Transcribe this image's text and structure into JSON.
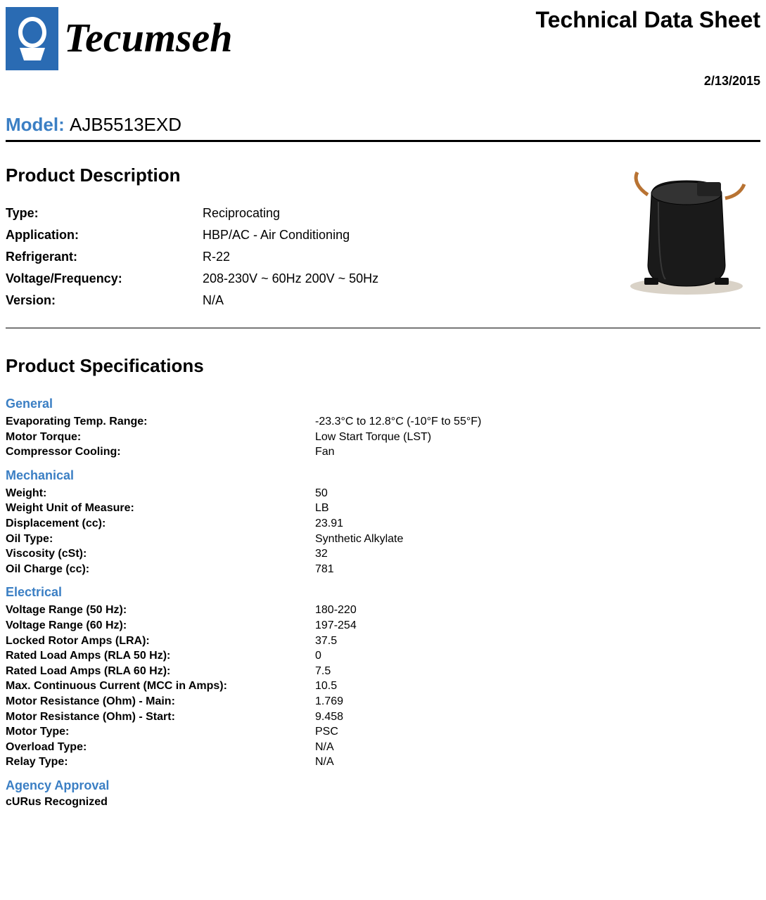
{
  "header": {
    "brand": "Tecumseh",
    "sheet_title": "Technical Data Sheet",
    "date": "2/13/2015",
    "logo_bg_color": "#2a6bb3"
  },
  "model": {
    "label": "Model:",
    "value": "AJB5513EXD"
  },
  "description": {
    "heading": "Product Description",
    "rows": [
      {
        "label": "Type:",
        "value": "Reciprocating"
      },
      {
        "label": "Application:",
        "value": "HBP/AC - Air Conditioning"
      },
      {
        "label": "Refrigerant:",
        "value": "R-22"
      },
      {
        "label": "Voltage/Frequency:",
        "value": "208-230V ~ 60Hz 200V ~ 50Hz"
      },
      {
        "label": "Version:",
        "value": "N/A"
      }
    ]
  },
  "specs": {
    "heading": "Product Specifications",
    "sections": [
      {
        "title": "General",
        "rows": [
          {
            "label": "Evaporating Temp. Range:",
            "value": "-23.3°C to 12.8°C (-10°F to 55°F)"
          },
          {
            "label": "Motor Torque:",
            "value": "Low Start Torque (LST)"
          },
          {
            "label": "Compressor Cooling:",
            "value": "Fan"
          }
        ]
      },
      {
        "title": "Mechanical",
        "rows": [
          {
            "label": "Weight:",
            "value": "50"
          },
          {
            "label": "Weight Unit of Measure:",
            "value": "LB"
          },
          {
            "label": "Displacement (cc):",
            "value": "23.91"
          },
          {
            "label": "Oil Type:",
            "value": "Synthetic Alkylate"
          },
          {
            "label": "Viscosity (cSt):",
            "value": "32"
          },
          {
            "label": "Oil Charge (cc):",
            "value": "781"
          }
        ]
      },
      {
        "title": "Electrical",
        "rows": [
          {
            "label": "Voltage Range (50 Hz):",
            "value": "180-220"
          },
          {
            "label": "Voltage Range (60 Hz):",
            "value": "197-254"
          },
          {
            "label": "Locked Rotor Amps (LRA):",
            "value": "37.5"
          },
          {
            "label": "Rated Load Amps (RLA 50 Hz):",
            "value": "0"
          },
          {
            "label": "Rated Load Amps (RLA 60 Hz):",
            "value": "7.5"
          },
          {
            "label": "Max. Continuous Current (MCC in Amps):",
            "value": "10.5"
          },
          {
            "label": "Motor Resistance (Ohm) - Main:",
            "value": "1.769"
          },
          {
            "label": "Motor Resistance (Ohm) - Start:",
            "value": "9.458"
          },
          {
            "label": "Motor Type:",
            "value": "PSC"
          },
          {
            "label": "Overload Type:",
            "value": "N/A"
          },
          {
            "label": "Relay Type:",
            "value": "N/A"
          }
        ]
      }
    ],
    "agency": {
      "title": "Agency Approval",
      "line": "cURus Recognized"
    }
  },
  "colors": {
    "accent": "#3b7fc4",
    "text": "#000000",
    "rule": "#000000"
  }
}
